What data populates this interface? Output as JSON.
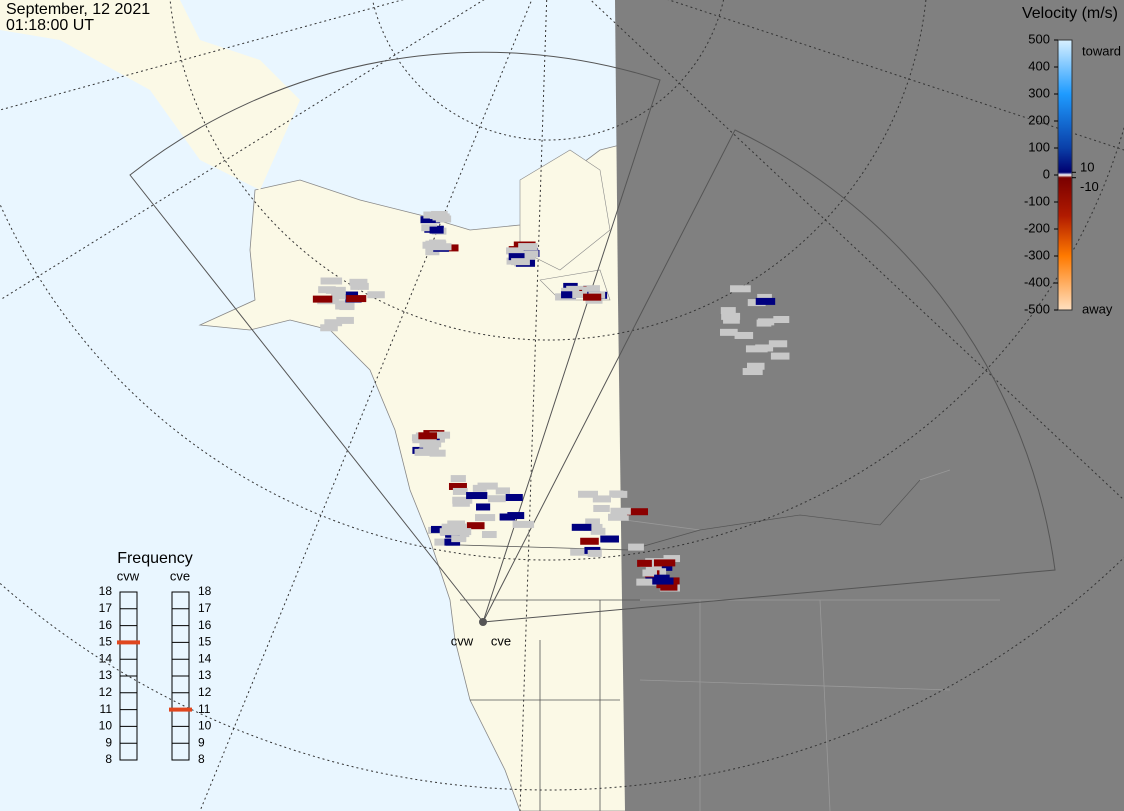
{
  "header": {
    "date": "September, 12 2021",
    "time": "01:18:00 UT"
  },
  "colorbar": {
    "title": "Velocity (m/s)",
    "ticks": [
      500,
      400,
      300,
      200,
      100,
      0,
      -100,
      -200,
      -300,
      -400,
      -500
    ],
    "inner_ticks": [
      10,
      -10
    ],
    "toward": "toward",
    "away": "away"
  },
  "frequency": {
    "title": "Frequency",
    "ticks": [
      18,
      17,
      16,
      15,
      14,
      13,
      12,
      11,
      10,
      9,
      8
    ],
    "radars": [
      {
        "name": "cvw",
        "value": 15
      },
      {
        "name": "cve",
        "value": 11
      }
    ]
  },
  "stations": [
    "cvw",
    "cve"
  ]
}
